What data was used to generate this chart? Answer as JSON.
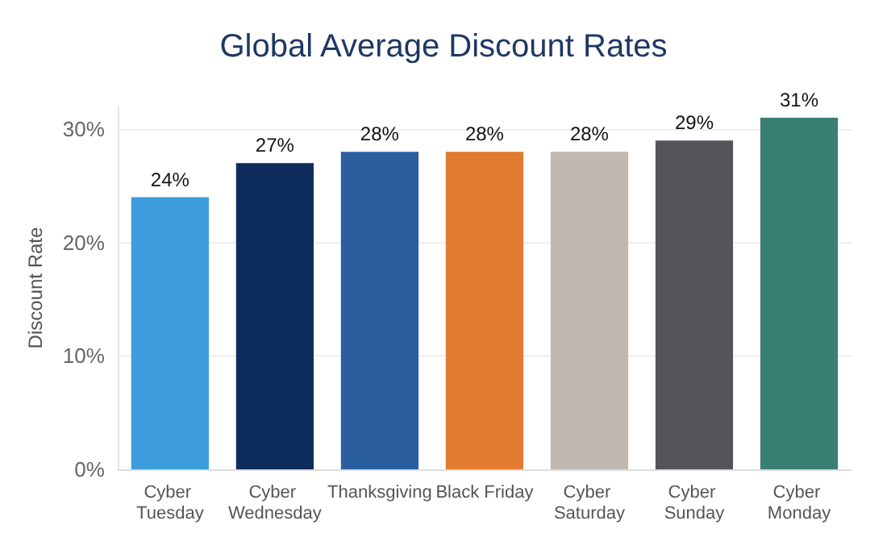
{
  "chart_data": {
    "type": "bar",
    "title": "Global Average Discount Rates",
    "ylabel": "Discount Rate",
    "categories": [
      "Cyber Tuesday",
      "Cyber Wednesday",
      "Thanksgiving",
      "Black Friday",
      "Cyber Saturday",
      "Cyber Sunday",
      "Cyber Monday"
    ],
    "values": [
      24,
      27,
      28,
      28,
      28,
      29,
      31
    ],
    "colors": [
      "#3d9ddb",
      "#0e2d5c",
      "#2a5e9f",
      "#e07b30",
      "#c0b9b3",
      "#55545b",
      "#3a7f73"
    ],
    "ylim": [
      0,
      32
    ],
    "yticks": [
      {
        "value": 0,
        "label": "0%"
      },
      {
        "value": 10,
        "label": "10%"
      },
      {
        "value": 20,
        "label": "20%"
      },
      {
        "value": 30,
        "label": "30%"
      }
    ],
    "value_labels": [
      "24%",
      "27%",
      "28%",
      "28%",
      "28%",
      "29%",
      "31%"
    ],
    "grid": "y"
  }
}
